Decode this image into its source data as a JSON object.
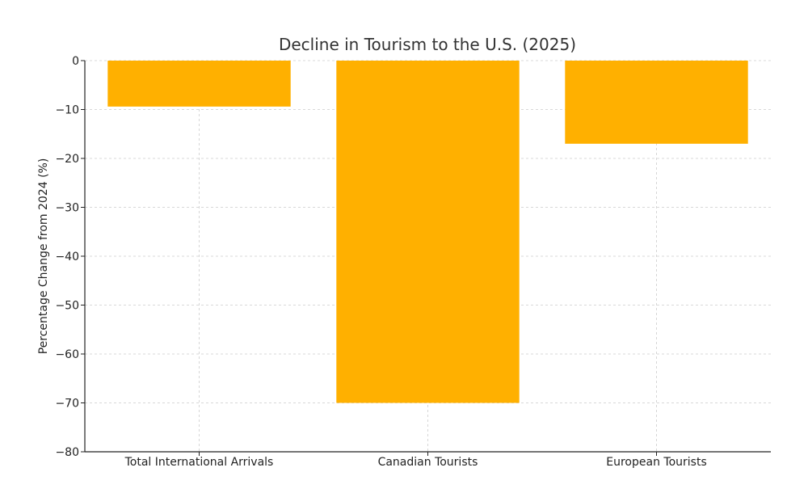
{
  "chart_data": {
    "type": "bar",
    "title": "Decline in Tourism to the U.S. (2025)",
    "xlabel": "",
    "ylabel": "Percentage Change from 2024 (%)",
    "categories": [
      "Total International Arrivals",
      "Canadian Tourists",
      "European Tourists"
    ],
    "values": [
      -9.4,
      -70,
      -17
    ],
    "ylim": [
      -80,
      0
    ],
    "yticks": [
      0,
      -10,
      -20,
      -30,
      -40,
      -50,
      -60,
      -70,
      -80
    ],
    "ytick_labels": [
      "0",
      "−10",
      "−20",
      "−30",
      "−40",
      "−50",
      "−60",
      "−70",
      "−80"
    ],
    "bar_color": "#FFB000",
    "grid": true,
    "legend": "none"
  }
}
